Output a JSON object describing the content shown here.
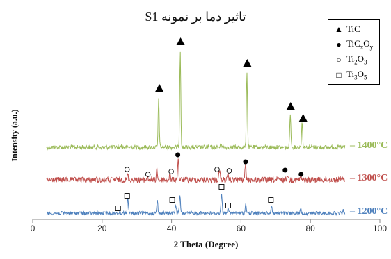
{
  "chart_data": {
    "type": "line",
    "title": "تاثیر دما بر نمونه S1",
    "xlabel": "2 Theta (Degree)",
    "ylabel": "Intensity (a.u.)",
    "xlim": [
      0,
      100
    ],
    "xticks": [
      "0",
      "20",
      "40",
      "60",
      "80",
      "100"
    ],
    "grid": false,
    "legend_position": "top-right",
    "legend": [
      {
        "symbol": "filled-triangle",
        "label": "TiC",
        "sub": []
      },
      {
        "symbol": "filled-circle",
        "label": "TiC",
        "sub": [
          "x",
          "O",
          "y"
        ]
      },
      {
        "symbol": "open-circle",
        "label": "Ti",
        "sub": [
          "2",
          "O",
          "3"
        ]
      },
      {
        "symbol": "open-square",
        "label": "Ti",
        "sub": [
          "3",
          "O",
          "5"
        ]
      }
    ],
    "series": [
      {
        "name": "1400°C",
        "color": "#9bbb59",
        "baseline": 212,
        "noise": 3,
        "peaks": [
          [
            25.5,
            3
          ],
          [
            36.3,
            70
          ],
          [
            42.5,
            140
          ],
          [
            54.3,
            6
          ],
          [
            61.7,
            110
          ],
          [
            74.2,
            50
          ],
          [
            77.6,
            36
          ]
        ],
        "markers": [
          {
            "x": 36.5,
            "y": 127,
            "symbol": "filled-triangle"
          },
          {
            "x": 42.6,
            "y": 60,
            "symbol": "filled-triangle"
          },
          {
            "x": 61.8,
            "y": 91,
            "symbol": "filled-triangle"
          },
          {
            "x": 74.3,
            "y": 153,
            "symbol": "filled-triangle"
          },
          {
            "x": 77.9,
            "y": 170,
            "symbol": "filled-triangle"
          }
        ]
      },
      {
        "name": "1300°C",
        "color": "#c0504d",
        "baseline": 259,
        "noise": 4,
        "peaks": [
          [
            27.4,
            8
          ],
          [
            33.0,
            4
          ],
          [
            35.8,
            16
          ],
          [
            39.5,
            7
          ],
          [
            41.9,
            30
          ],
          [
            53.8,
            15
          ],
          [
            56.3,
            6
          ],
          [
            61.3,
            24
          ],
          [
            73.4,
            8
          ],
          [
            77.2,
            6
          ],
          [
            88.5,
            5
          ]
        ],
        "markers": [
          {
            "x": 27.2,
            "y": 244,
            "symbol": "open-circle"
          },
          {
            "x": 33.2,
            "y": 251,
            "symbol": "open-circle"
          },
          {
            "x": 39.9,
            "y": 247,
            "symbol": "open-circle"
          },
          {
            "x": 41.8,
            "y": 223,
            "symbol": "filled-circle"
          },
          {
            "x": 53.1,
            "y": 244,
            "symbol": "open-circle"
          },
          {
            "x": 56.6,
            "y": 246,
            "symbol": "open-circle"
          },
          {
            "x": 61.3,
            "y": 233,
            "symbol": "filled-circle"
          },
          {
            "x": 72.7,
            "y": 245,
            "symbol": "filled-circle"
          },
          {
            "x": 77.3,
            "y": 251,
            "symbol": "filled-circle"
          }
        ]
      },
      {
        "name": "1200°C",
        "color": "#4f81bd",
        "baseline": 307,
        "noise": 2.5,
        "peaks": [
          [
            27.4,
            22
          ],
          [
            35.9,
            18
          ],
          [
            41.2,
            13
          ],
          [
            42.4,
            26
          ],
          [
            54.4,
            30
          ],
          [
            56.3,
            9
          ],
          [
            61.4,
            14
          ],
          [
            68.8,
            11
          ],
          [
            77.2,
            6
          ],
          [
            89.5,
            4
          ]
        ],
        "markers": [
          {
            "x": 24.6,
            "y": 300,
            "symbol": "open-square"
          },
          {
            "x": 27.2,
            "y": 282,
            "symbol": "open-square"
          },
          {
            "x": 40.2,
            "y": 288,
            "symbol": "open-square"
          },
          {
            "x": 54.4,
            "y": 269,
            "symbol": "open-square"
          },
          {
            "x": 56.3,
            "y": 296,
            "symbol": "open-square"
          },
          {
            "x": 68.6,
            "y": 288,
            "symbol": "open-square"
          }
        ]
      }
    ]
  }
}
